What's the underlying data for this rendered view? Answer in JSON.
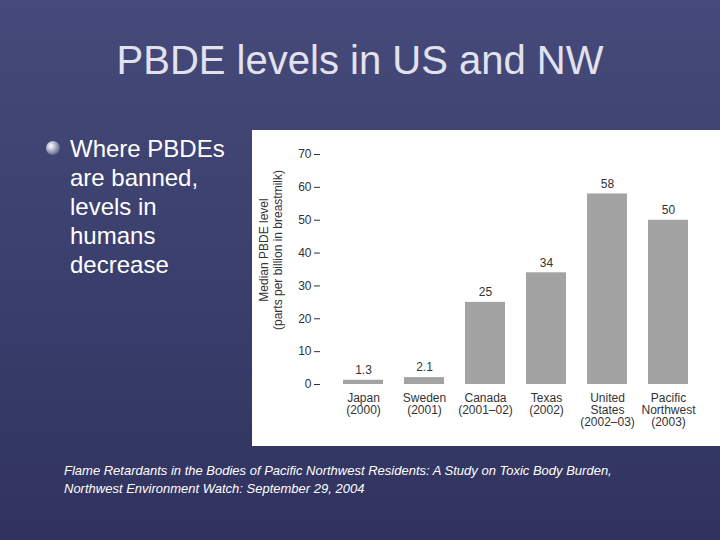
{
  "chart_data": {
    "type": "bar",
    "title": "PBDE levels in US and NW",
    "annotations": [
      "Where PBDEs are banned, levels in humans decrease"
    ],
    "source": [
      "Flame Retardants in the Bodies of Pacific Northwest Residents: A Study on Toxic Body Burden,",
      "Northwest Environment Watch: September 29, 2004"
    ],
    "y_label": "Median PBDE level\n(parts per billion in breastmilk)",
    "categories": [
      "Japan\n(2000)",
      "Sweden\n(2001)",
      "Canada\n(2001–02)",
      "Texas\n(2002)",
      "United\nStates\n(2002–03)",
      "Pacific\nNorthwest\n(2003)"
    ],
    "values": [
      1.3,
      2.1,
      25,
      34,
      58,
      50
    ],
    "color": "#a3a3a3",
    "ylim": [
      0,
      70
    ],
    "yticks": [
      0,
      10,
      20,
      30,
      40,
      50,
      60,
      70
    ],
    "grid": false,
    "data_labels": true
  }
}
